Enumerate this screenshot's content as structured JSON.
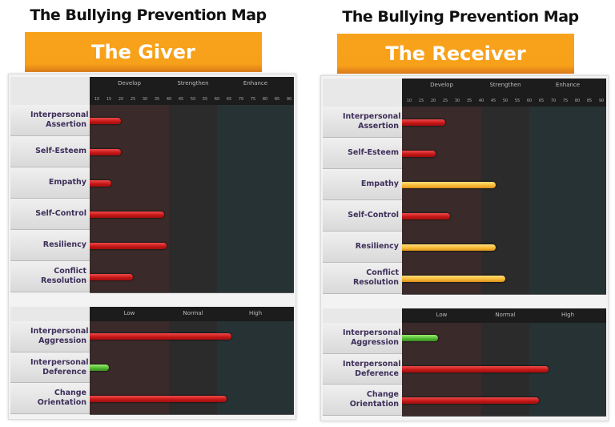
{
  "chart_data": [
    {
      "type": "bar",
      "title": "The Bullying Prevention Map",
      "subtitle": "The Giver",
      "xlim": [
        7,
        92
      ],
      "ticks": [
        10,
        15,
        20,
        25,
        30,
        35,
        40,
        45,
        50,
        55,
        60,
        65,
        70,
        75,
        80,
        85,
        90
      ],
      "sections": [
        {
          "levels": [
            "Develop",
            "Strengthen",
            "Enhance"
          ],
          "show_ticks": true,
          "categories": [
            "Interpersonal Assertion",
            "Self-Esteem",
            "Empathy",
            "Self-Control",
            "Resiliency",
            "Conflict Resolution"
          ],
          "values": [
            20,
            20,
            16,
            38,
            39,
            25
          ],
          "colors": [
            "red",
            "red",
            "red",
            "red",
            "red",
            "red"
          ]
        },
        {
          "levels": [
            "Low",
            "Normal",
            "High"
          ],
          "show_ticks": false,
          "categories": [
            "Interpersonal Aggression",
            "Interpersonal Deference",
            "Change Orientation"
          ],
          "values": [
            66,
            15,
            64
          ],
          "colors": [
            "red",
            "green",
            "red"
          ]
        }
      ]
    },
    {
      "type": "bar",
      "title": "The Bullying Prevention Map",
      "subtitle": "The Receiver",
      "xlim": [
        7,
        92
      ],
      "ticks": [
        10,
        15,
        20,
        25,
        30,
        35,
        40,
        45,
        50,
        55,
        60,
        65,
        70,
        75,
        80,
        85,
        90
      ],
      "sections": [
        {
          "levels": [
            "Develop",
            "Strengthen",
            "Enhance"
          ],
          "show_ticks": true,
          "categories": [
            "Interpersonal Assertion",
            "Self-Esteem",
            "Empathy",
            "Self-Control",
            "Resiliency",
            "Conflict Resolution"
          ],
          "values": [
            25,
            21,
            46,
            27,
            46,
            50
          ],
          "colors": [
            "red",
            "red",
            "yellow",
            "red",
            "yellow",
            "yellow"
          ]
        },
        {
          "levels": [
            "Low",
            "Normal",
            "High"
          ],
          "show_ticks": false,
          "categories": [
            "Interpersonal Aggression",
            "Interpersonal Deference",
            "Change Orientation"
          ],
          "values": [
            22,
            68,
            64
          ],
          "colors": [
            "green",
            "red",
            "red"
          ]
        }
      ]
    }
  ],
  "zone_boundaries": [
    40,
    60
  ],
  "colors": {
    "red": "#d42020",
    "yellow": "#f7b733",
    "green": "#5cc43a",
    "banner": "#f7a01a",
    "zone_low": "#3a2a2a",
    "zone_mid": "#2b2b2b",
    "zone_high": "#263234"
  }
}
